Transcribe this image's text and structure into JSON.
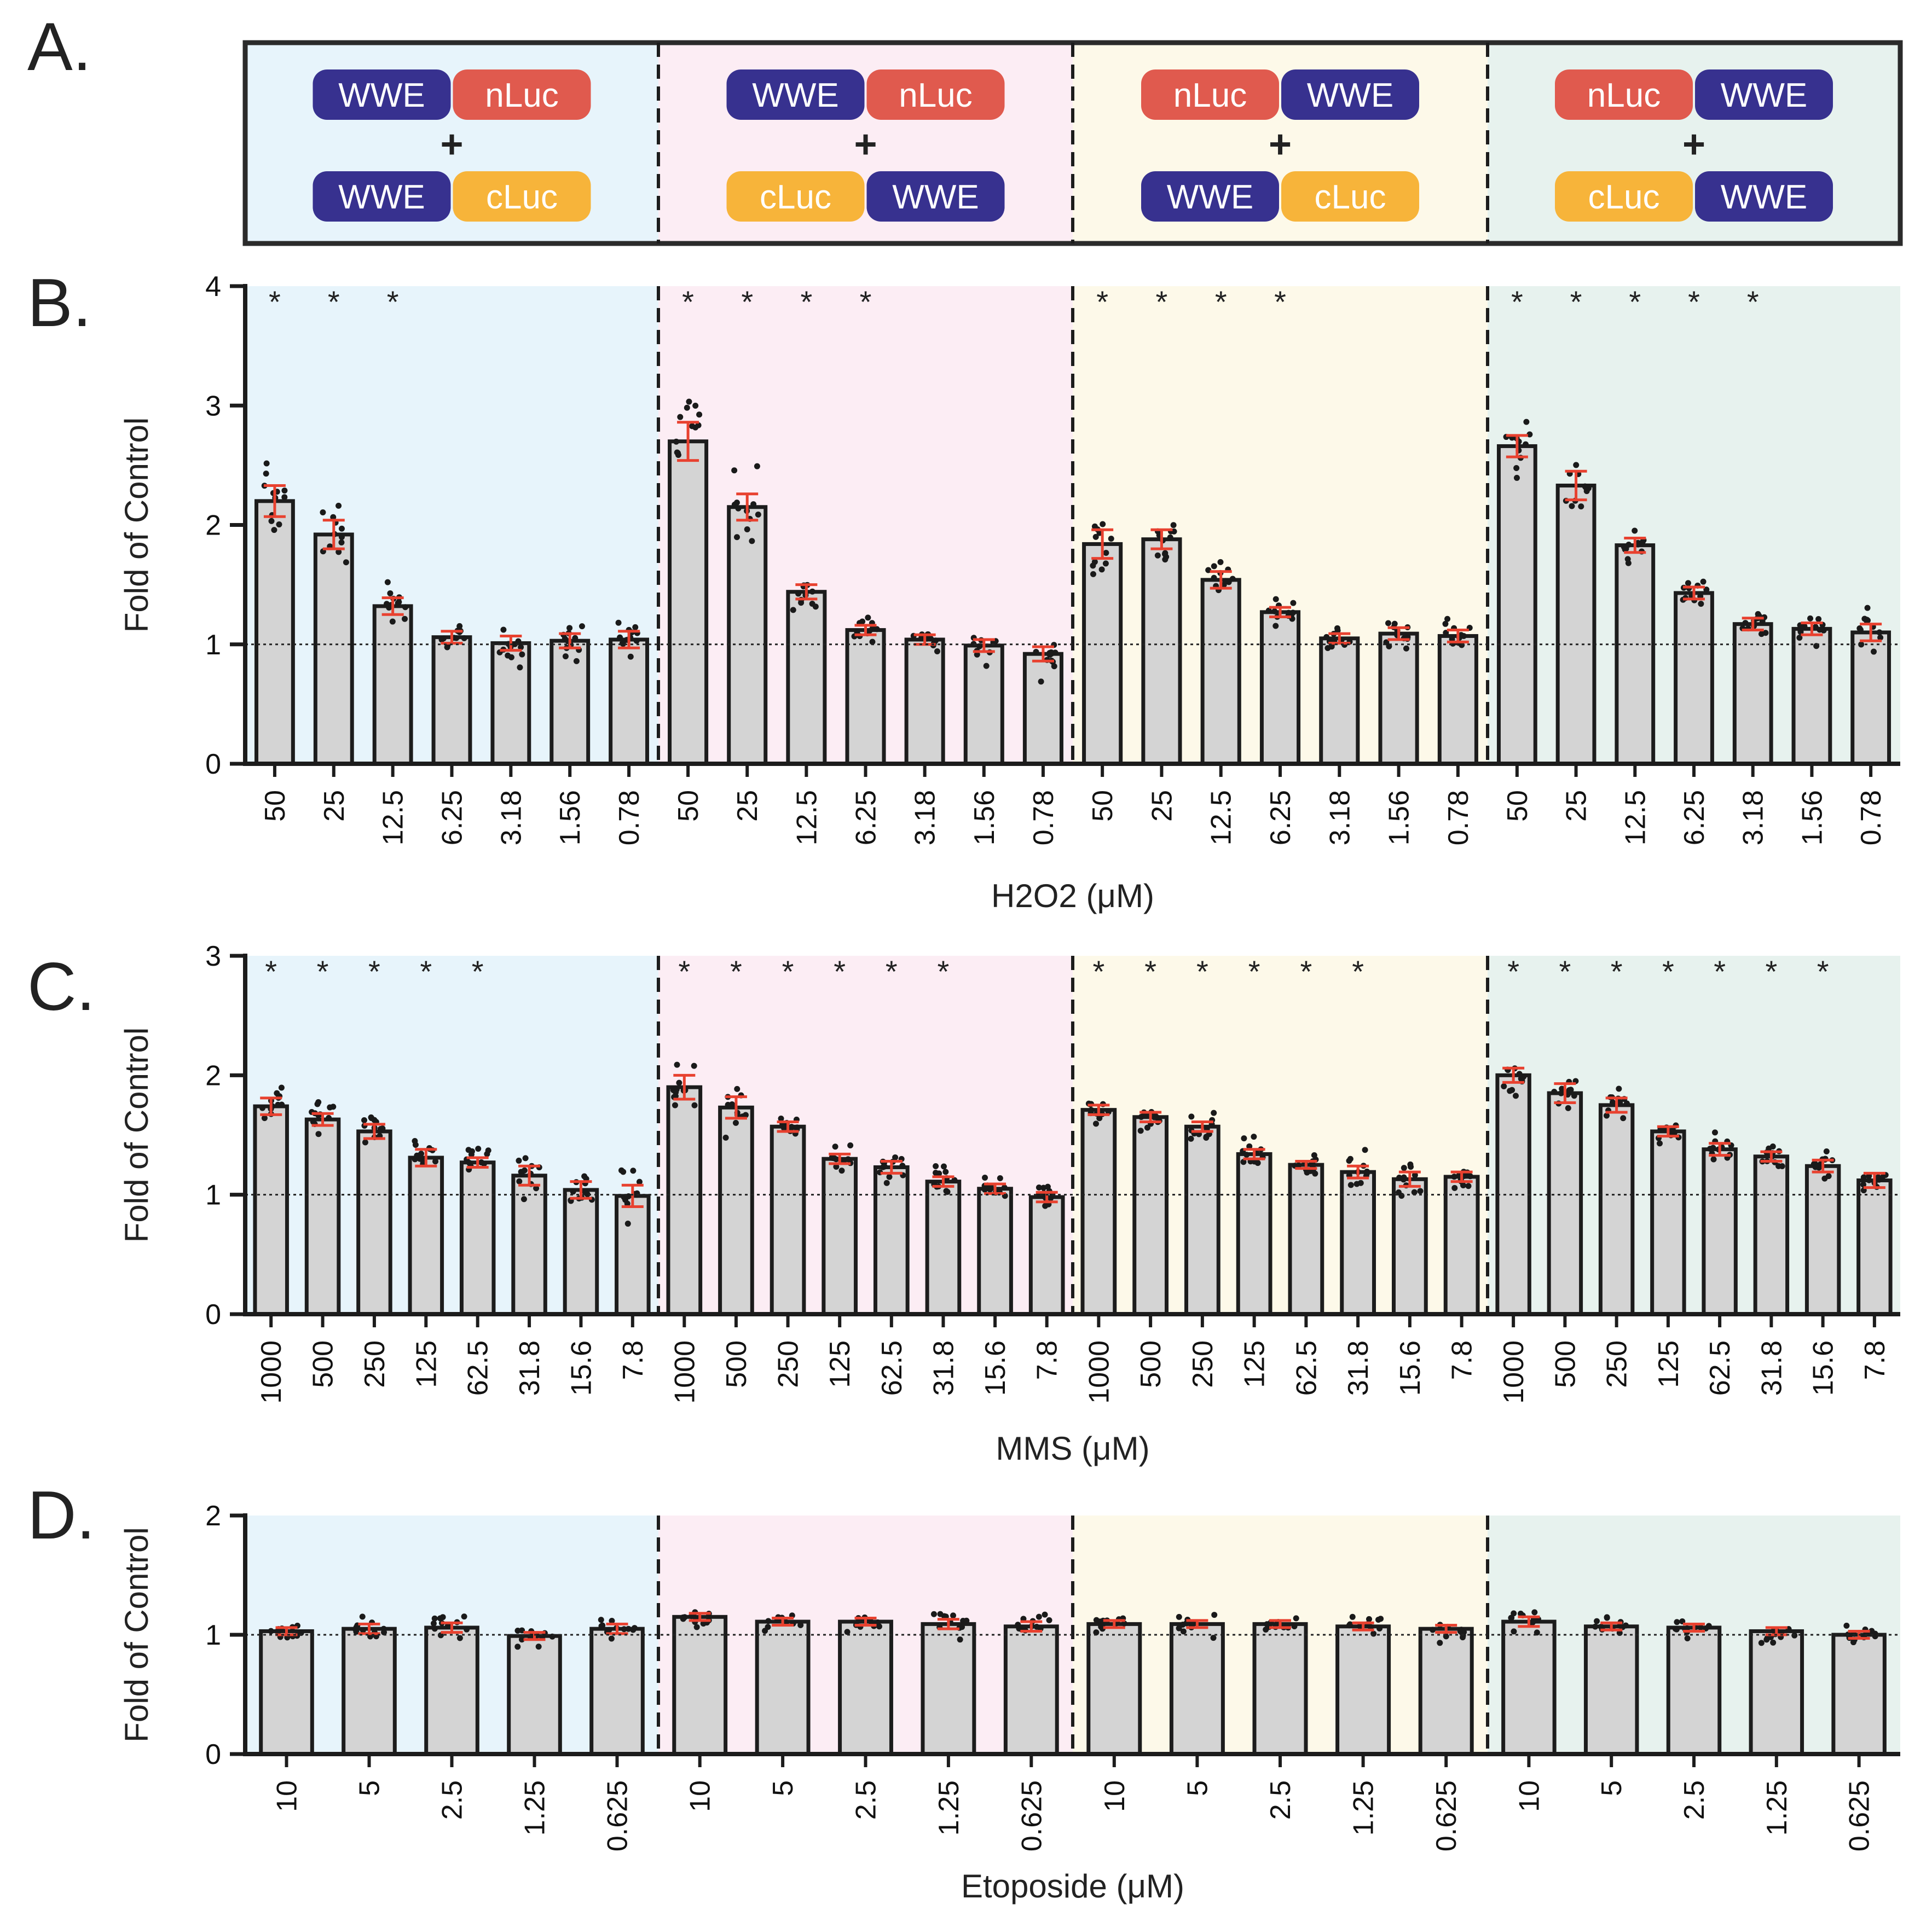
{
  "colors": {
    "panel1": "#e7f4fb",
    "panel2": "#fcedf4",
    "panel3": "#fdf9e9",
    "panel4": "#e7f2ee",
    "bar_fill": "#d4d4d4",
    "bar_stroke": "#1c1c1c",
    "error": "#e8412f",
    "dot": "#1a1a1a",
    "wwe": "#37318f",
    "nluc": "#e05a4e",
    "cluc": "#f7b43a"
  },
  "panel_labels": {
    "a": "A.",
    "b": "B.",
    "c": "C.",
    "d": "D."
  },
  "constructs": [
    {
      "top": [
        "WWE",
        "nLuc"
      ],
      "plus": "+",
      "bottom": [
        "WWE",
        "cLuc"
      ]
    },
    {
      "top": [
        "WWE",
        "nLuc"
      ],
      "plus": "+",
      "bottom": [
        "cLuc",
        "WWE"
      ]
    },
    {
      "top": [
        "nLuc",
        "WWE"
      ],
      "plus": "+",
      "bottom": [
        "WWE",
        "cLuc"
      ]
    },
    {
      "top": [
        "nLuc",
        "WWE"
      ],
      "plus": "+",
      "bottom": [
        "cLuc",
        "WWE"
      ]
    }
  ],
  "chart_data": [
    {
      "type": "bar",
      "panel": "B",
      "ylabel": "Fold of Control",
      "xlabel": "H2O2 (μM)",
      "ylim": [
        0,
        4
      ],
      "yticks": [
        "0",
        "1",
        "2",
        "3",
        "4"
      ],
      "reference_line": 1,
      "significance_marker": "*",
      "categories": [
        "50",
        "25",
        "12.5",
        "6.25",
        "3.18",
        "1.56",
        "0.78"
      ],
      "series": [
        {
          "name": "WWE-nLuc + WWE-cLuc",
          "values": [
            2.2,
            1.92,
            1.32,
            1.06,
            1.01,
            1.03,
            1.04
          ],
          "sem": [
            0.13,
            0.12,
            0.07,
            0.05,
            0.06,
            0.06,
            0.07
          ],
          "significant": [
            true,
            true,
            true,
            false,
            false,
            false,
            false
          ]
        },
        {
          "name": "WWE-nLuc + cLuc-WWE",
          "values": [
            2.7,
            2.15,
            1.44,
            1.12,
            1.04,
            0.99,
            0.92
          ],
          "sem": [
            0.16,
            0.11,
            0.06,
            0.04,
            0.04,
            0.05,
            0.06
          ],
          "significant": [
            true,
            true,
            true,
            true,
            false,
            false,
            false
          ]
        },
        {
          "name": "nLuc-WWE + WWE-cLuc",
          "values": [
            1.84,
            1.88,
            1.54,
            1.27,
            1.05,
            1.09,
            1.07
          ],
          "sem": [
            0.12,
            0.08,
            0.07,
            0.04,
            0.04,
            0.05,
            0.05
          ],
          "significant": [
            true,
            true,
            true,
            true,
            false,
            false,
            false
          ]
        },
        {
          "name": "nLuc-WWE + cLuc-WWE",
          "values": [
            2.66,
            2.33,
            1.83,
            1.43,
            1.17,
            1.13,
            1.1
          ],
          "sem": [
            0.09,
            0.12,
            0.06,
            0.05,
            0.05,
            0.05,
            0.07
          ],
          "significant": [
            true,
            true,
            true,
            true,
            true,
            false,
            false
          ]
        }
      ]
    },
    {
      "type": "bar",
      "panel": "C",
      "ylabel": "Fold of Control",
      "xlabel": "MMS (μM)",
      "ylim": [
        0,
        3
      ],
      "yticks": [
        "0",
        "1",
        "2",
        "3"
      ],
      "reference_line": 1,
      "significance_marker": "*",
      "categories": [
        "1000",
        "500",
        "250",
        "125",
        "62.5",
        "31.8",
        "15.6",
        "7.8"
      ],
      "series": [
        {
          "name": "WWE-nLuc + WWE-cLuc",
          "values": [
            1.74,
            1.63,
            1.53,
            1.31,
            1.27,
            1.16,
            1.04,
            0.99
          ],
          "sem": [
            0.07,
            0.05,
            0.06,
            0.07,
            0.04,
            0.08,
            0.07,
            0.09
          ],
          "significant": [
            true,
            true,
            true,
            true,
            true,
            false,
            false,
            false
          ]
        },
        {
          "name": "WWE-nLuc + cLuc-WWE",
          "values": [
            1.9,
            1.73,
            1.57,
            1.3,
            1.23,
            1.11,
            1.05,
            0.98
          ],
          "sem": [
            0.1,
            0.09,
            0.04,
            0.04,
            0.05,
            0.04,
            0.04,
            0.04
          ],
          "significant": [
            true,
            true,
            true,
            true,
            true,
            true,
            false,
            false
          ]
        },
        {
          "name": "nLuc-WWE + WWE-cLuc",
          "values": [
            1.71,
            1.65,
            1.57,
            1.34,
            1.25,
            1.19,
            1.13,
            1.15
          ],
          "sem": [
            0.04,
            0.04,
            0.04,
            0.04,
            0.03,
            0.05,
            0.06,
            0.04
          ],
          "significant": [
            true,
            true,
            true,
            true,
            true,
            true,
            false,
            false
          ]
        },
        {
          "name": "nLuc-WWE + cLuc-WWE",
          "values": [
            2.0,
            1.85,
            1.75,
            1.53,
            1.38,
            1.32,
            1.24,
            1.12
          ],
          "sem": [
            0.06,
            0.08,
            0.06,
            0.04,
            0.05,
            0.04,
            0.05,
            0.06
          ],
          "significant": [
            true,
            true,
            true,
            true,
            true,
            true,
            true,
            false
          ]
        }
      ]
    },
    {
      "type": "bar",
      "panel": "D",
      "ylabel": "Fold of Control",
      "xlabel": "Etoposide (μM)",
      "ylim": [
        0,
        2
      ],
      "yticks": [
        "0",
        "1",
        "2"
      ],
      "reference_line": 1,
      "categories": [
        "10",
        "5",
        "2.5",
        "1.25",
        "0.625"
      ],
      "series": [
        {
          "name": "WWE-nLuc + WWE-cLuc",
          "values": [
            1.03,
            1.05,
            1.06,
            0.99,
            1.05
          ],
          "sem": [
            0.03,
            0.04,
            0.04,
            0.03,
            0.04
          ],
          "significant": [
            false,
            false,
            false,
            false,
            false
          ]
        },
        {
          "name": "WWE-nLuc + cLuc-WWE",
          "values": [
            1.15,
            1.11,
            1.11,
            1.09,
            1.07
          ],
          "sem": [
            0.03,
            0.03,
            0.03,
            0.04,
            0.04
          ],
          "significant": [
            false,
            false,
            false,
            false,
            false
          ]
        },
        {
          "name": "nLuc-WWE + WWE-cLuc",
          "values": [
            1.09,
            1.09,
            1.09,
            1.07,
            1.05
          ],
          "sem": [
            0.03,
            0.03,
            0.03,
            0.03,
            0.03
          ],
          "significant": [
            false,
            false,
            false,
            false,
            false
          ]
        },
        {
          "name": "nLuc-WWE + cLuc-WWE",
          "values": [
            1.11,
            1.07,
            1.06,
            1.03,
            1.0
          ],
          "sem": [
            0.04,
            0.03,
            0.03,
            0.03,
            0.03
          ],
          "significant": [
            false,
            false,
            false,
            false,
            false
          ]
        }
      ]
    }
  ]
}
